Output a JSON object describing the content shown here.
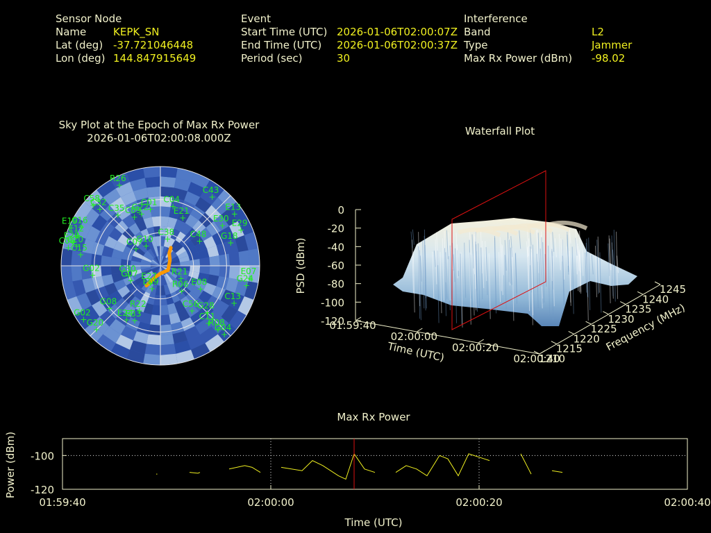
{
  "header": {
    "sensor": {
      "heading": "Sensor Node",
      "name_label": "Name",
      "name_value": "KEPK_SN",
      "lat_label": "Lat (deg)",
      "lat_value": "-37.721046448",
      "lon_label": "Lon (deg)",
      "lon_value": "144.847915649"
    },
    "event": {
      "heading": "Event",
      "start_label": "Start Time (UTC)",
      "start_value": "2026-01-06T02:00:07Z",
      "end_label": "End Time (UTC)",
      "end_value": "2026-01-06T02:00:37Z",
      "period_label": "Period (sec)",
      "period_value": "30"
    },
    "interference": {
      "heading": "Interference",
      "band_label": "Band",
      "band_value": "L2",
      "type_label": "Type",
      "type_value": "Jammer",
      "max_label": "Max Rx Power (dBm)",
      "max_value": "-98.02"
    }
  },
  "colors": {
    "label": "#f2f2cc",
    "value": "#f0f020",
    "satellite": "#22ee22",
    "trace": "#f0f020",
    "marker": "#dd1111",
    "sky_fill": "#3f63bf",
    "track": "#ff9900"
  },
  "chart_data": [
    {
      "type": "scatter",
      "id": "sky_plot",
      "title": "Sky Plot at the Epoch of Max Rx Power",
      "subtitle": "2026-01-06T02:00:08.000Z",
      "polar": true,
      "satellites": [
        {
          "id": "R26",
          "az": 333,
          "el": 8
        },
        {
          "id": "C58",
          "az": 312,
          "el": 8
        },
        {
          "id": "C32",
          "az": 313,
          "el": 15
        },
        {
          "id": "E19",
          "az": 293,
          "el": 2
        },
        {
          "id": "C16",
          "az": 296,
          "el": 10
        },
        {
          "id": "E12",
          "az": 290,
          "el": 10
        },
        {
          "id": "E20",
          "az": 285,
          "el": 8
        },
        {
          "id": "C20",
          "az": 283,
          "el": 12
        },
        {
          "id": "C06",
          "az": 281,
          "el": 5
        },
        {
          "id": "C15",
          "az": 278,
          "el": 17
        },
        {
          "id": "G02",
          "az": 262,
          "el": 28
        },
        {
          "id": "C35",
          "az": 320,
          "el": 30
        },
        {
          "id": "C09",
          "az": 332,
          "el": 40
        },
        {
          "id": "G22",
          "az": 340,
          "el": 40
        },
        {
          "id": "C01",
          "az": 350,
          "el": 38
        },
        {
          "id": "C04",
          "az": 12,
          "el": 35
        },
        {
          "id": "E21",
          "az": 25,
          "el": 42
        },
        {
          "id": "C43",
          "az": 37,
          "el": 12
        },
        {
          "id": "E13",
          "az": 55,
          "el": 8
        },
        {
          "id": "E30",
          "az": 57,
          "el": 23
        },
        {
          "id": "E29",
          "az": 66,
          "el": 10
        },
        {
          "id": "G18",
          "az": 72,
          "el": 23
        },
        {
          "id": "C48",
          "az": 58,
          "el": 48
        },
        {
          "id": "C38",
          "az": 15,
          "el": 65
        },
        {
          "id": "C07",
          "az": 305,
          "el": 63
        },
        {
          "id": "G10",
          "az": 324,
          "el": 68
        },
        {
          "id": "G30",
          "az": 252,
          "el": 60
        },
        {
          "id": "G07",
          "az": 243,
          "el": 60
        },
        {
          "id": "E27",
          "az": 210,
          "el": 72
        },
        {
          "id": "E09",
          "az": 200,
          "el": 68
        },
        {
          "id": "R21",
          "az": 122,
          "el": 68
        },
        {
          "id": "R06",
          "az": 140,
          "el": 60
        },
        {
          "id": "E08",
          "az": 120,
          "el": 48
        },
        {
          "id": "C56",
          "az": 145,
          "el": 40
        },
        {
          "id": "G28",
          "az": 135,
          "el": 30
        },
        {
          "id": "C11",
          "az": 140,
          "el": 22
        },
        {
          "id": "C13",
          "az": 117,
          "el": 15
        },
        {
          "id": "G24",
          "az": 103,
          "el": 10
        },
        {
          "id": "E07",
          "az": 98,
          "el": 8
        },
        {
          "id": "R08",
          "az": 138,
          "el": 12
        },
        {
          "id": "G04",
          "az": 137,
          "el": 5
        },
        {
          "id": "G08",
          "az": 230,
          "el": 30
        },
        {
          "id": "G02",
          "az": 235,
          "el": 5
        },
        {
          "id": "R22",
          "az": 205,
          "el": 45
        },
        {
          "id": "E33",
          "az": 205,
          "el": 35
        },
        {
          "id": "E24",
          "az": 212,
          "el": 32
        },
        {
          "id": "G20",
          "az": 225,
          "el": 8
        }
      ],
      "track": [
        {
          "az": 215,
          "el": 68
        },
        {
          "az": 210,
          "el": 75
        },
        {
          "az": 200,
          "el": 80
        },
        {
          "az": 180,
          "el": 83
        },
        {
          "az": 120,
          "el": 82
        },
        {
          "az": 60,
          "el": 80
        },
        {
          "az": 35,
          "el": 76
        },
        {
          "az": 30,
          "el": 71
        }
      ],
      "rings_el": [
        0,
        30,
        60,
        90
      ]
    },
    {
      "type": "area",
      "id": "waterfall",
      "title": "Waterfall Plot",
      "xlabel": "Time (UTC)",
      "ylabel": "Frequency (MHz)",
      "zlabel": "PSD (dBm)",
      "x_ticks": [
        "01:59:40",
        "02:00:00",
        "02:00:20",
        "02:00:40"
      ],
      "y_ticks": [
        "1210",
        "1215",
        "1220",
        "1225",
        "1230",
        "1235",
        "1240",
        "1245"
      ],
      "z_ticks": [
        "0",
        "-20",
        "-40",
        "-60",
        "-80",
        "-100",
        "-120"
      ],
      "zlim": [
        -120,
        0
      ],
      "marker_time": "02:00:08",
      "psd_plateau": -45,
      "psd_floor": -100
    },
    {
      "type": "line",
      "id": "max_rx_power",
      "title": "Max Rx Power",
      "xlabel": "Time (UTC)",
      "ylabel": "Power (dBm)",
      "x_ticks": [
        "01:59:40",
        "02:00:00",
        "02:00:20",
        "02:00:40"
      ],
      "y_ticks": [
        "-100",
        "-120"
      ],
      "xlim": [
        0,
        60
      ],
      "ylim": [
        -120,
        -90
      ],
      "reference_line": -100,
      "marker_x": 28,
      "segments": [
        [
          [
            9,
            -111
          ],
          [
            9.1,
            -111
          ]
        ],
        [
          [
            12.2,
            -110
          ],
          [
            13,
            -110.5
          ],
          [
            13.2,
            -110
          ]
        ],
        [
          [
            16,
            -108
          ],
          [
            17.5,
            -106
          ],
          [
            18.2,
            -107
          ],
          [
            19,
            -110
          ]
        ],
        [
          [
            21,
            -107
          ],
          [
            23,
            -109
          ],
          [
            24,
            -103
          ],
          [
            25,
            -106
          ],
          [
            26.5,
            -112
          ],
          [
            27.2,
            -114
          ],
          [
            28,
            -99
          ],
          [
            29,
            -108
          ],
          [
            30,
            -110
          ]
        ],
        [
          [
            32,
            -110
          ],
          [
            33,
            -106
          ],
          [
            34,
            -108
          ],
          [
            35,
            -112
          ],
          [
            36.2,
            -100
          ],
          [
            37,
            -102
          ],
          [
            38,
            -112
          ],
          [
            39,
            -99
          ],
          [
            40.5,
            -102
          ],
          [
            41,
            -103
          ]
        ],
        [
          [
            44,
            -99
          ],
          [
            45,
            -111
          ]
        ],
        [
          [
            47,
            -109
          ],
          [
            48,
            -110
          ]
        ]
      ]
    }
  ]
}
